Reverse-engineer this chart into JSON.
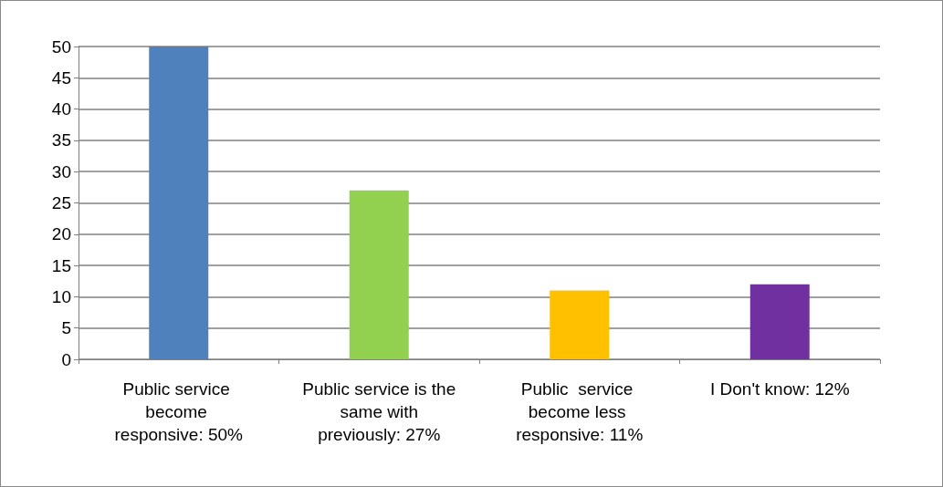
{
  "chart_data": {
    "type": "bar",
    "categories": [
      "Public service become responsive: 50%",
      "Public service is the same with previously: 27%",
      "Public  service become less responsive: 11%",
      "I Don't know: 12%"
    ],
    "values": [
      50,
      27,
      11,
      12
    ],
    "colors": [
      "#4f81bd",
      "#92d050",
      "#ffc000",
      "#7030a0"
    ],
    "ylim": [
      0,
      50
    ],
    "yticks": [
      0,
      5,
      10,
      15,
      20,
      25,
      30,
      35,
      40,
      45,
      50
    ],
    "grid": "y"
  }
}
